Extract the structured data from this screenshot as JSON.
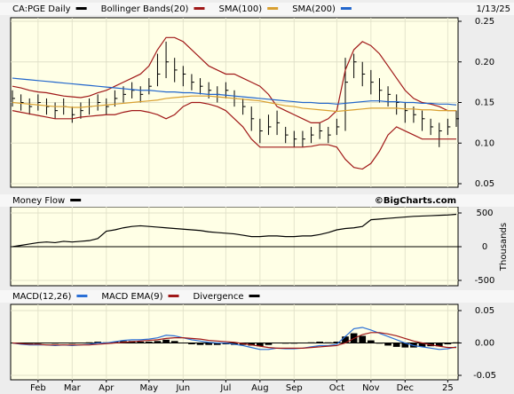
{
  "chart_data": [
    {
      "type": "ohlc",
      "date": "1/13/25",
      "ylim": [
        0.05,
        0.25
      ],
      "yticks": [
        0.05,
        {
          "value": 0.1,
          "label": "0.10"
        },
        0.15,
        {
          "value": 0.2,
          "label": "0.20"
        },
        0.25
      ],
      "series": [
        {
          "name": "CA:PGE Daily",
          "color": "#000000",
          "high": [
            0.165,
            0.16,
            0.155,
            0.16,
            0.155,
            0.15,
            0.155,
            0.145,
            0.15,
            0.155,
            0.16,
            0.155,
            0.165,
            0.17,
            0.175,
            0.17,
            0.18,
            0.21,
            0.225,
            0.205,
            0.195,
            0.185,
            0.18,
            0.175,
            0.17,
            0.175,
            0.165,
            0.155,
            0.145,
            0.13,
            0.135,
            0.14,
            0.12,
            0.115,
            0.115,
            0.12,
            0.125,
            0.12,
            0.13,
            0.205,
            0.21,
            0.2,
            0.19,
            0.18,
            0.17,
            0.16,
            0.15,
            0.145,
            0.14,
            0.13,
            0.125,
            0.13,
            0.14
          ],
          "low": [
            0.145,
            0.14,
            0.135,
            0.14,
            0.135,
            0.13,
            0.135,
            0.125,
            0.13,
            0.135,
            0.14,
            0.135,
            0.145,
            0.15,
            0.155,
            0.15,
            0.16,
            0.17,
            0.18,
            0.175,
            0.17,
            0.165,
            0.16,
            0.155,
            0.15,
            0.155,
            0.145,
            0.135,
            0.115,
            0.1,
            0.11,
            0.11,
            0.1,
            0.095,
            0.095,
            0.1,
            0.105,
            0.1,
            0.11,
            0.115,
            0.18,
            0.17,
            0.16,
            0.15,
            0.145,
            0.135,
            0.125,
            0.125,
            0.115,
            0.11,
            0.095,
            0.11,
            0.12
          ],
          "close": [
            0.155,
            0.15,
            0.145,
            0.15,
            0.145,
            0.14,
            0.145,
            0.135,
            0.14,
            0.145,
            0.15,
            0.145,
            0.155,
            0.16,
            0.165,
            0.16,
            0.17,
            0.185,
            0.2,
            0.19,
            0.185,
            0.175,
            0.17,
            0.165,
            0.16,
            0.165,
            0.155,
            0.145,
            0.13,
            0.115,
            0.12,
            0.125,
            0.11,
            0.105,
            0.105,
            0.11,
            0.115,
            0.11,
            0.12,
            0.175,
            0.2,
            0.185,
            0.175,
            0.165,
            0.16,
            0.15,
            0.14,
            0.135,
            0.13,
            0.12,
            0.115,
            0.12,
            0.13
          ]
        },
        {
          "name": "Bollinger Bands(20)",
          "color": "#a01818",
          "upper": [
            0.17,
            0.168,
            0.165,
            0.163,
            0.162,
            0.16,
            0.158,
            0.157,
            0.156,
            0.158,
            0.162,
            0.165,
            0.17,
            0.175,
            0.18,
            0.185,
            0.195,
            0.215,
            0.23,
            0.23,
            0.225,
            0.215,
            0.205,
            0.195,
            0.19,
            0.185,
            0.185,
            0.18,
            0.175,
            0.17,
            0.16,
            0.145,
            0.14,
            0.135,
            0.13,
            0.125,
            0.125,
            0.13,
            0.14,
            0.19,
            0.215,
            0.225,
            0.22,
            0.21,
            0.195,
            0.18,
            0.165,
            0.155,
            0.15,
            0.148,
            0.145,
            0.14,
            0.14
          ],
          "lower": [
            0.14,
            0.138,
            0.136,
            0.134,
            0.132,
            0.13,
            0.13,
            0.13,
            0.132,
            0.133,
            0.134,
            0.135,
            0.135,
            0.138,
            0.14,
            0.14,
            0.138,
            0.135,
            0.13,
            0.135,
            0.145,
            0.15,
            0.15,
            0.148,
            0.145,
            0.14,
            0.13,
            0.12,
            0.105,
            0.095,
            0.095,
            0.095,
            0.095,
            0.095,
            0.095,
            0.096,
            0.098,
            0.098,
            0.095,
            0.08,
            0.07,
            0.068,
            0.075,
            0.09,
            0.11,
            0.12,
            0.115,
            0.11,
            0.105,
            0.105,
            0.105,
            0.105,
            0.105
          ]
        },
        {
          "name": "SMA(100)",
          "color": "#d9a030",
          "values": [
            0.15,
            0.149,
            0.148,
            0.147,
            0.146,
            0.145,
            0.145,
            0.144,
            0.144,
            0.145,
            0.146,
            0.147,
            0.148,
            0.149,
            0.15,
            0.151,
            0.152,
            0.153,
            0.155,
            0.156,
            0.157,
            0.158,
            0.158,
            0.158,
            0.157,
            0.156,
            0.155,
            0.154,
            0.153,
            0.152,
            0.15,
            0.148,
            0.146,
            0.145,
            0.143,
            0.142,
            0.141,
            0.14,
            0.139,
            0.14,
            0.141,
            0.142,
            0.143,
            0.143,
            0.143,
            0.143,
            0.142,
            0.142,
            0.141,
            0.141,
            0.14,
            0.14,
            0.14
          ]
        },
        {
          "name": "SMA(200)",
          "color": "#2266cc",
          "values": [
            0.18,
            0.179,
            0.178,
            0.177,
            0.176,
            0.175,
            0.174,
            0.173,
            0.172,
            0.171,
            0.17,
            0.169,
            0.168,
            0.167,
            0.166,
            0.165,
            0.165,
            0.164,
            0.163,
            0.163,
            0.162,
            0.162,
            0.161,
            0.16,
            0.16,
            0.159,
            0.158,
            0.157,
            0.156,
            0.155,
            0.154,
            0.153,
            0.152,
            0.151,
            0.15,
            0.15,
            0.149,
            0.149,
            0.148,
            0.149,
            0.15,
            0.151,
            0.152,
            0.152,
            0.151,
            0.151,
            0.15,
            0.15,
            0.149,
            0.149,
            0.148,
            0.148,
            0.147
          ]
        }
      ]
    },
    {
      "type": "line",
      "source": "©BigCharts.com",
      "y_label": "Thousands",
      "ylim": [
        -500,
        500
      ],
      "yticks": [
        -500,
        0,
        500
      ],
      "series": [
        {
          "name": "Money Flow",
          "color": "#000000",
          "values": [
            0,
            20,
            40,
            60,
            70,
            60,
            80,
            70,
            80,
            90,
            120,
            230,
            250,
            280,
            300,
            310,
            300,
            290,
            280,
            270,
            260,
            250,
            240,
            220,
            210,
            200,
            190,
            170,
            150,
            150,
            160,
            160,
            150,
            150,
            160,
            160,
            180,
            210,
            250,
            270,
            280,
            300,
            400,
            410,
            420,
            430,
            440,
            450,
            455,
            460,
            465,
            470,
            480
          ]
        }
      ]
    },
    {
      "type": "line",
      "ylim": [
        -0.05,
        0.05
      ],
      "yticks": [
        -0.05,
        {
          "value": 0,
          "label": "0.00"
        },
        0.05
      ],
      "categories": [
        null,
        null,
        null,
        "Feb",
        null,
        null,
        null,
        "Mar",
        null,
        null,
        null,
        "Apr",
        null,
        null,
        null,
        null,
        "May",
        null,
        null,
        null,
        "Jun",
        null,
        null,
        null,
        null,
        "Jul",
        null,
        null,
        null,
        "Aug",
        null,
        null,
        null,
        "Sep",
        null,
        null,
        null,
        null,
        "Oct",
        null,
        null,
        null,
        "Nov",
        null,
        null,
        null,
        "Dec",
        null,
        null,
        null,
        null,
        "25",
        null
      ],
      "series": [
        {
          "name": "MACD(12,26)",
          "color": "#2a6fd6",
          "values": [
            0,
            -0.002,
            -0.003,
            -0.003,
            -0.003,
            -0.004,
            -0.003,
            -0.004,
            -0.003,
            -0.002,
            0,
            0,
            0.002,
            0.004,
            0.005,
            0.005,
            0.006,
            0.008,
            0.012,
            0.011,
            0.008,
            0.005,
            0.003,
            0.001,
            0,
            0,
            -0.002,
            -0.004,
            -0.007,
            -0.01,
            -0.01,
            -0.008,
            -0.009,
            -0.009,
            -0.008,
            -0.006,
            -0.004,
            -0.004,
            -0.002,
            0.01,
            0.022,
            0.024,
            0.02,
            0.015,
            0.01,
            0.005,
            0,
            -0.004,
            -0.006,
            -0.008,
            -0.01,
            -0.009,
            -0.006
          ]
        },
        {
          "name": "MACD EMA(9)",
          "color": "#a01818",
          "values": [
            0,
            -0.001,
            -0.002,
            -0.002,
            -0.003,
            -0.003,
            -0.003,
            -0.003,
            -0.003,
            -0.003,
            -0.002,
            -0.001,
            0,
            0.001,
            0.002,
            0.003,
            0.004,
            0.005,
            0.007,
            0.008,
            0.008,
            0.007,
            0.006,
            0.004,
            0.003,
            0.002,
            0.001,
            -0.001,
            -0.003,
            -0.005,
            -0.007,
            -0.008,
            -0.008,
            -0.008,
            -0.008,
            -0.007,
            -0.006,
            -0.005,
            -0.004,
            0,
            0.007,
            0.013,
            0.016,
            0.016,
            0.014,
            0.011,
            0.007,
            0.003,
            0,
            -0.003,
            -0.005,
            -0.007,
            -0.007
          ]
        },
        {
          "name": "Divergence",
          "color": "#000000",
          "type": "bar",
          "values": [
            0,
            -0.001,
            -0.001,
            -0.001,
            0,
            -0.001,
            0,
            -0.001,
            0,
            0.001,
            0.002,
            0.001,
            0.002,
            0.003,
            0.003,
            0.002,
            0.002,
            0.003,
            0.005,
            0.003,
            0,
            -0.002,
            -0.003,
            -0.003,
            -0.003,
            -0.002,
            -0.003,
            -0.003,
            -0.004,
            -0.005,
            -0.003,
            0,
            -0.001,
            -0.001,
            0,
            0.001,
            0.002,
            0.001,
            0.002,
            0.01,
            0.015,
            0.011,
            0.004,
            -0.001,
            -0.004,
            -0.006,
            -0.007,
            -0.007,
            -0.006,
            -0.005,
            -0.005,
            -0.002,
            0.001
          ]
        }
      ]
    }
  ]
}
